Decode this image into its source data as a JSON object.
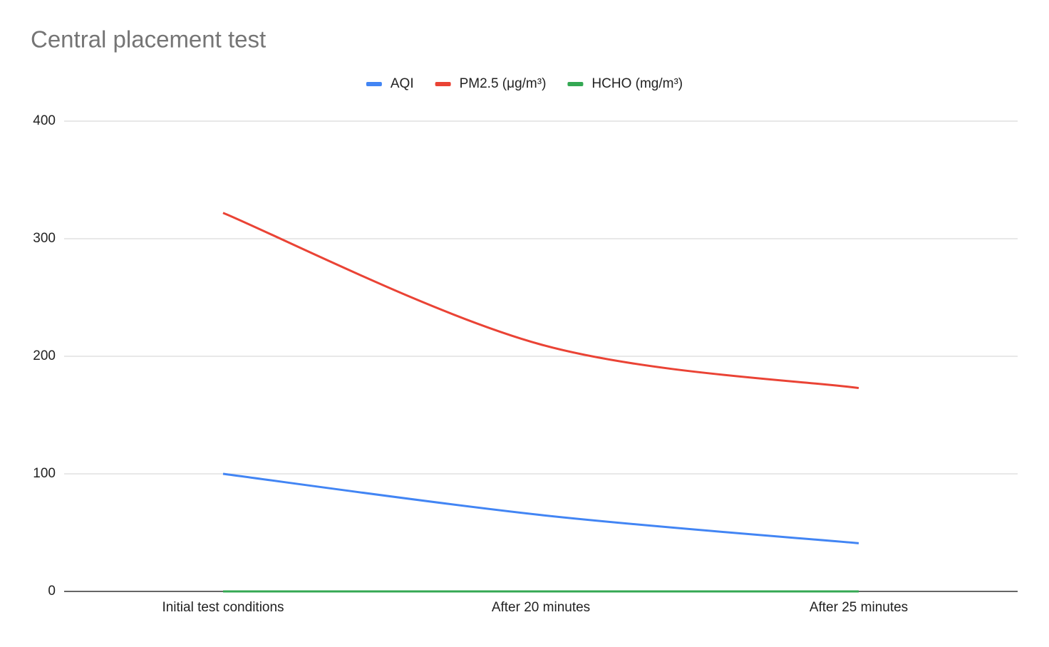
{
  "chart_data": {
    "type": "line",
    "title": "Central placement test",
    "categories": [
      "Initial test conditions",
      "After 20 minutes",
      "After 25 minutes"
    ],
    "series": [
      {
        "name": "AQI",
        "color": "#4285f4",
        "values": [
          100,
          65,
          41
        ]
      },
      {
        "name": "PM2.5 (μg/m³)",
        "color": "#ea4335",
        "values": [
          322,
          210,
          173
        ]
      },
      {
        "name": "HCHO (mg/m³)",
        "color": "#34a853",
        "values": [
          0,
          0,
          0
        ]
      }
    ],
    "ylim": [
      0,
      400
    ],
    "yticks": [
      0,
      100,
      200,
      300,
      400
    ],
    "grid": true,
    "legend": "top",
    "smooth": true
  }
}
